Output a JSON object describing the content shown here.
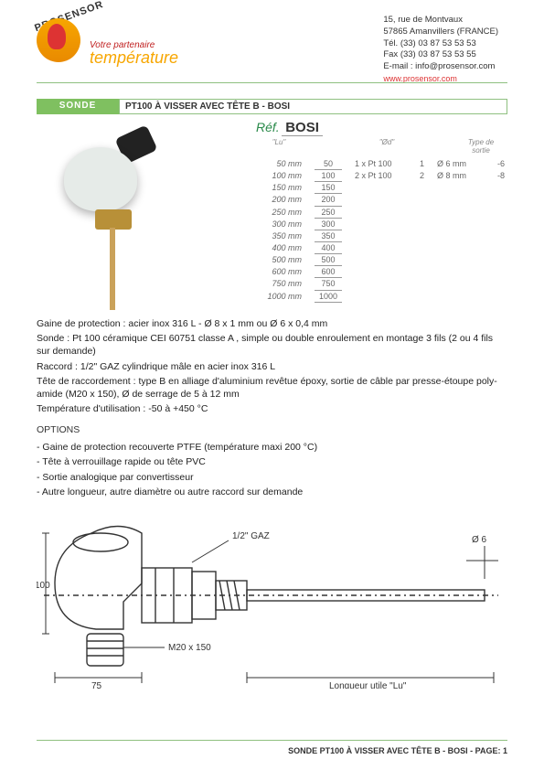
{
  "brand": {
    "logo_text": "PROSENSOR",
    "tagline_small": "Votre partenaire",
    "tagline_big": "température"
  },
  "address": {
    "line1": "15, rue de Montvaux",
    "line2": "57865 Amanvillers (FRANCE)",
    "tel": "Tél. (33) 03 87 53 53 53",
    "fax": "Fax (33) 03 87 53 53 55",
    "email": "E-mail : info@prosensor.com",
    "web": "www.prosensor.com"
  },
  "title": {
    "tag": "SONDE",
    "main": "PT100 À VISSER AVEC TÊTE B - BOSI"
  },
  "ref": {
    "label": "Réf.",
    "code": "BOSI"
  },
  "spec_headers": {
    "lu": "\"Lu\"",
    "nb": "",
    "opt": "\"Ød\"",
    "dia": "",
    "out": "Type de sortie"
  },
  "spec_rows": [
    {
      "len_label": "50 mm",
      "lu": "50",
      "nb": "1 x Pt 100",
      "n": "1",
      "dia": "Ø 6 mm",
      "out": "-6"
    },
    {
      "len_label": "100 mm",
      "lu": "100",
      "nb": "2 x Pt 100",
      "n": "2",
      "dia": "Ø 8 mm",
      "out": "-8"
    },
    {
      "len_label": "150 mm",
      "lu": "150",
      "nb": "",
      "n": "",
      "dia": "",
      "out": ""
    },
    {
      "len_label": "200 mm",
      "lu": "200",
      "nb": "",
      "n": "",
      "dia": "",
      "out": ""
    },
    {
      "len_label": "250 mm",
      "lu": "250",
      "nb": "",
      "n": "",
      "dia": "",
      "out": ""
    },
    {
      "len_label": "300 mm",
      "lu": "300",
      "nb": "",
      "n": "",
      "dia": "",
      "out": ""
    },
    {
      "len_label": "350 mm",
      "lu": "350",
      "nb": "",
      "n": "",
      "dia": "",
      "out": ""
    },
    {
      "len_label": "400 mm",
      "lu": "400",
      "nb": "",
      "n": "",
      "dia": "",
      "out": ""
    },
    {
      "len_label": "500 mm",
      "lu": "500",
      "nb": "",
      "n": "",
      "dia": "",
      "out": ""
    },
    {
      "len_label": "600 mm",
      "lu": "600",
      "nb": "",
      "n": "",
      "dia": "",
      "out": ""
    },
    {
      "len_label": "750 mm",
      "lu": "750",
      "nb": "",
      "n": "",
      "dia": "",
      "out": ""
    },
    {
      "len_label": "1000 mm",
      "lu": "1000",
      "nb": "",
      "n": "",
      "dia": "",
      "out": ""
    }
  ],
  "specs": {
    "gaine": "Gaine de protection : acier inox 316 L - Ø 8 x 1 mm ou Ø 6 x 0,4 mm",
    "sonde": "Sonde : Pt 100 céramique CEI 60751 classe A , simple ou double enroulement en montage 3 fils (2 ou 4 fils sur demande)",
    "raccord": "Raccord : 1/2\" GAZ cylindrique mâle en acier inox 316 L",
    "tete": "Tête de raccordement : type B en alliage d'aluminium revêtue époxy, sortie de câble par presse-étoupe poly-amide (M20 x 150), Ø de serrage de 5 à 12 mm",
    "temp": "Température d'utilisation : -50 à +450 °C"
  },
  "options": {
    "heading": "OPTIONS",
    "items": [
      "- Gaine de protection recouverte PTFE (température maxi 200 °C)",
      "- Tête à verrouillage rapide ou tête PVC",
      "- Sortie analogique par convertisseur",
      "- Autre longueur, autre diamètre ou autre raccord sur demande"
    ]
  },
  "diagram": {
    "gaz": "1/2\" GAZ",
    "d6": "Ø 6",
    "h100": "100",
    "m20": "M20 x 150",
    "w75": "75",
    "lu": "Longueur utile \"Lu\""
  },
  "footer": "SONDE PT100 À VISSER AVEC TÊTE B - BOSI - PAGE: 1",
  "colors": {
    "accent_green": "#7fc060",
    "rule_green": "#8fc080",
    "brand_orange": "#f7a600",
    "brand_red": "#c02020"
  }
}
